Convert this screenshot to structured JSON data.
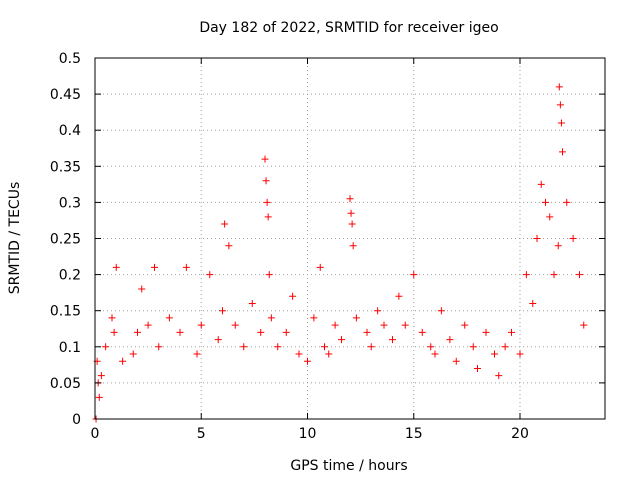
{
  "chart_data": {
    "type": "scatter",
    "title": "Day 182 of 2022, SRMTID for receiver igeo",
    "xlabel": "GPS time / hours",
    "ylabel": "SRMTID / TECUs",
    "xlim": [
      0,
      24
    ],
    "ylim": [
      0,
      0.5
    ],
    "grid": true,
    "marker": "plus",
    "xticks": [
      {
        "value": 0,
        "label": "0"
      },
      {
        "value": 5,
        "label": "5"
      },
      {
        "value": 10,
        "label": "10"
      },
      {
        "value": 15,
        "label": "15"
      },
      {
        "value": 20,
        "label": "20"
      }
    ],
    "yticks": [
      {
        "value": 0,
        "label": "0"
      },
      {
        "value": 0.05,
        "label": "0.05"
      },
      {
        "value": 0.1,
        "label": "0.1"
      },
      {
        "value": 0.15,
        "label": "0.15"
      },
      {
        "value": 0.2,
        "label": "0.2"
      },
      {
        "value": 0.25,
        "label": "0.25"
      },
      {
        "value": 0.3,
        "label": "0.3"
      },
      {
        "value": 0.35,
        "label": "0.35"
      },
      {
        "value": 0.4,
        "label": "0.4"
      },
      {
        "value": 0.45,
        "label": "0.45"
      },
      {
        "value": 0.5,
        "label": "0.5"
      }
    ],
    "series": [
      {
        "name": "SRMTID",
        "color": "#ff0000",
        "x_range_hours": [
          0,
          23
        ],
        "x": [
          0.05,
          0.1,
          0.15,
          0.2,
          0.3,
          0.5,
          0.8,
          0.9,
          1.0,
          1.3,
          1.8,
          2.0,
          2.2,
          2.5,
          2.8,
          3.0,
          3.5,
          4.0,
          4.3,
          4.8,
          5.0,
          5.4,
          5.8,
          6.0,
          6.1,
          6.3,
          6.6,
          7.0,
          7.4,
          7.8,
          8.0,
          8.05,
          8.1,
          8.15,
          8.2,
          8.3,
          8.6,
          9.0,
          9.3,
          9.6,
          10.0,
          10.3,
          10.6,
          10.8,
          11.0,
          11.3,
          11.6,
          12.0,
          12.05,
          12.1,
          12.15,
          12.3,
          12.8,
          13.0,
          13.3,
          13.6,
          14.0,
          14.3,
          14.6,
          15.0,
          15.4,
          15.8,
          16.0,
          16.3,
          16.7,
          17.0,
          17.4,
          17.8,
          18.0,
          18.4,
          18.8,
          19.0,
          19.3,
          19.6,
          20.0,
          20.3,
          20.6,
          20.8,
          21.0,
          21.2,
          21.4,
          21.6,
          21.8,
          21.85,
          21.9,
          21.95,
          22.0,
          22.2,
          22.5,
          22.8,
          23.0
        ],
        "y": [
          0.0,
          0.08,
          0.05,
          0.03,
          0.06,
          0.1,
          0.14,
          0.12,
          0.21,
          0.08,
          0.09,
          0.12,
          0.18,
          0.13,
          0.21,
          0.1,
          0.14,
          0.12,
          0.21,
          0.09,
          0.13,
          0.2,
          0.11,
          0.15,
          0.27,
          0.24,
          0.13,
          0.1,
          0.16,
          0.12,
          0.36,
          0.33,
          0.3,
          0.28,
          0.2,
          0.14,
          0.1,
          0.12,
          0.17,
          0.09,
          0.08,
          0.14,
          0.21,
          0.1,
          0.09,
          0.13,
          0.11,
          0.305,
          0.285,
          0.27,
          0.24,
          0.14,
          0.12,
          0.1,
          0.15,
          0.13,
          0.11,
          0.17,
          0.13,
          0.2,
          0.12,
          0.1,
          0.09,
          0.15,
          0.11,
          0.08,
          0.13,
          0.1,
          0.07,
          0.12,
          0.09,
          0.06,
          0.1,
          0.12,
          0.09,
          0.2,
          0.16,
          0.25,
          0.325,
          0.3,
          0.28,
          0.2,
          0.24,
          0.46,
          0.435,
          0.41,
          0.37,
          0.3,
          0.25,
          0.2,
          0.13
        ]
      }
    ]
  }
}
